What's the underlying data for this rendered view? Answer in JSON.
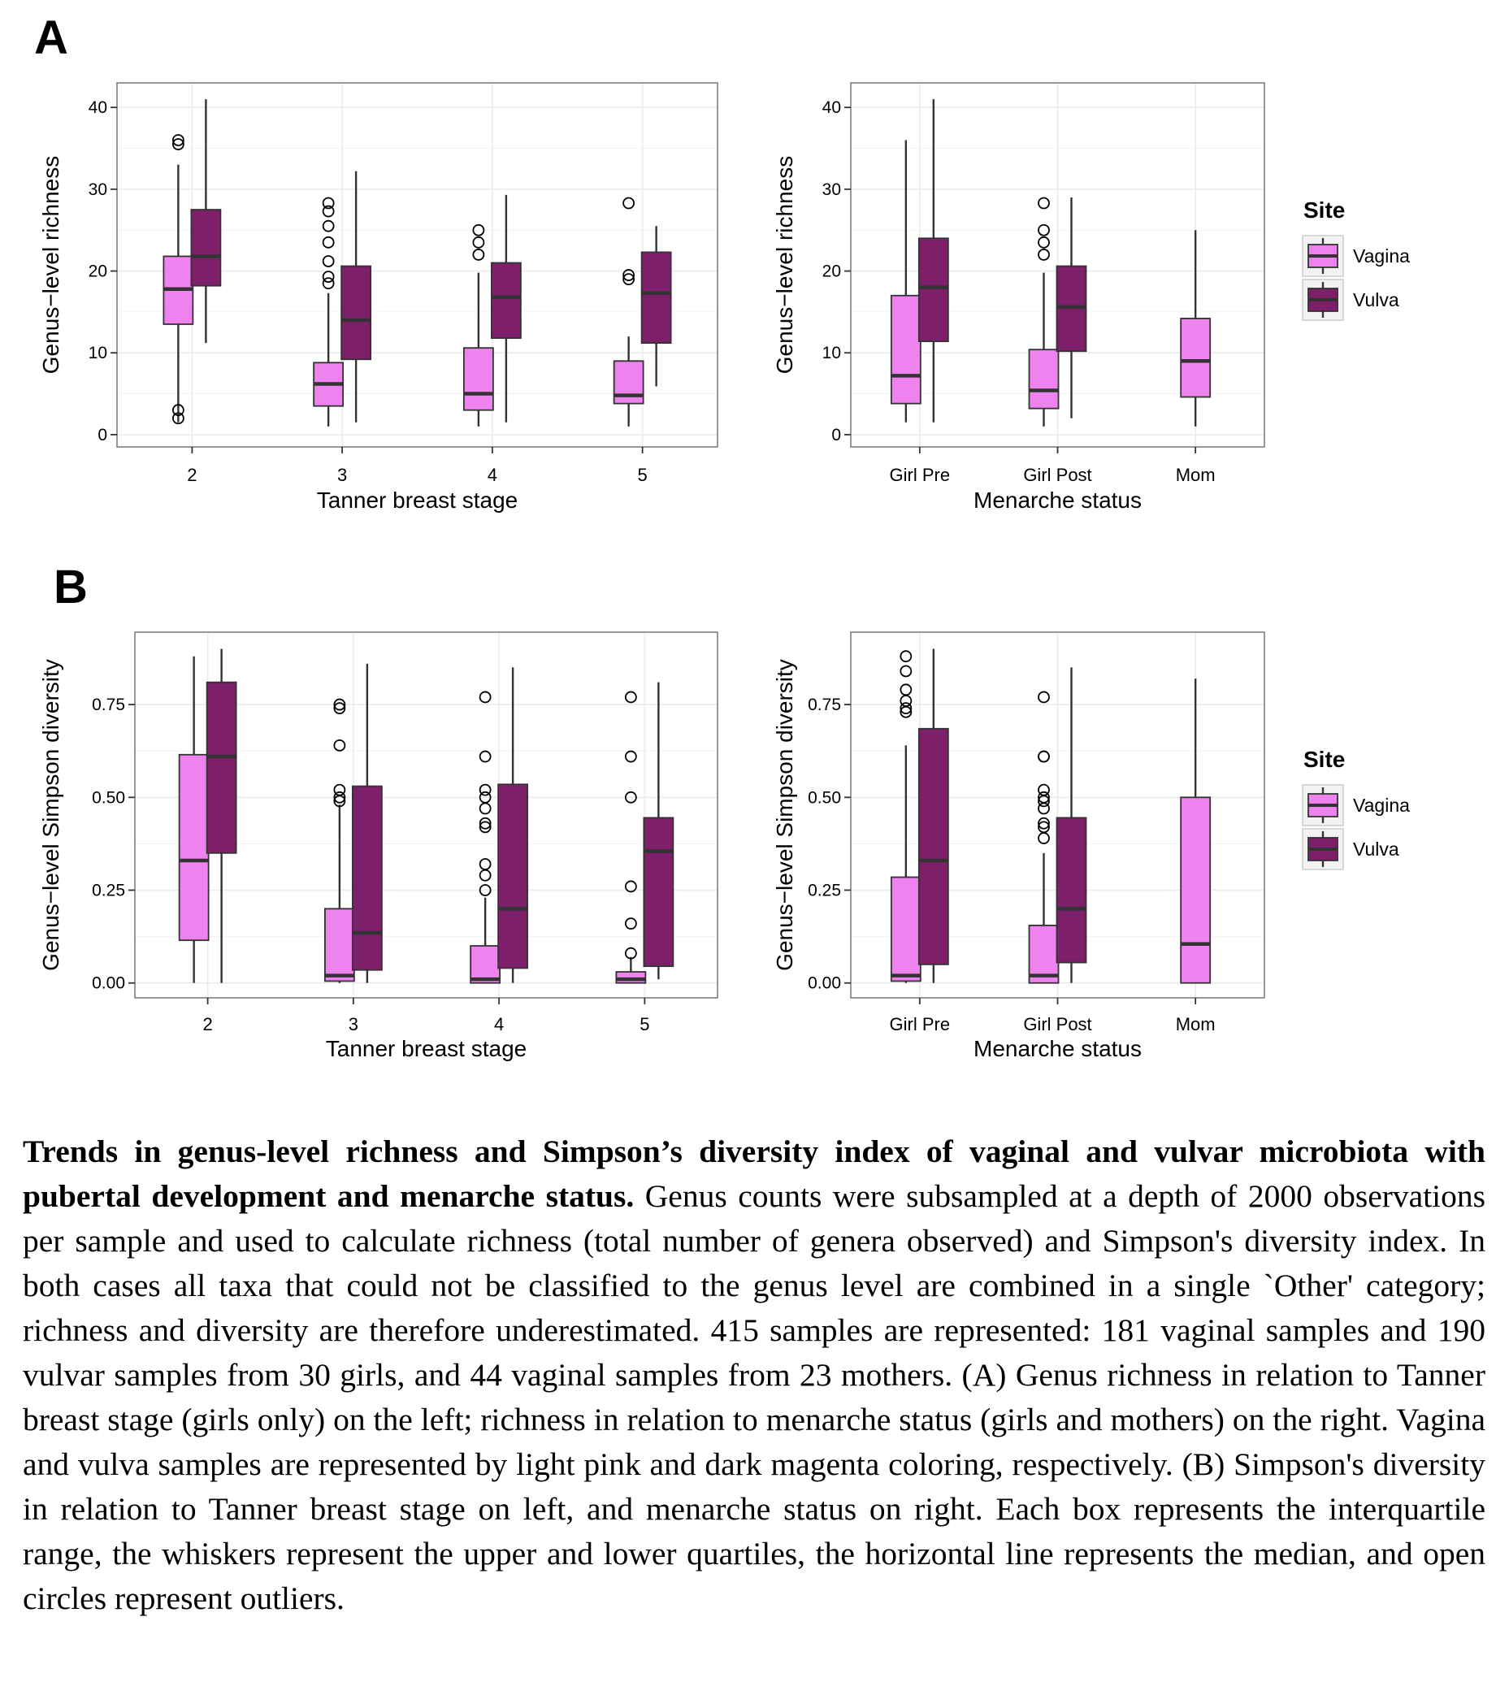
{
  "panel_labels": [
    "A",
    "B"
  ],
  "legend": {
    "title": "Site",
    "entries": [
      {
        "label": "Vagina",
        "color": "#ee82ee"
      },
      {
        "label": "Vulva",
        "color": "#7e1f6c"
      }
    ]
  },
  "colors": {
    "vagina": "#ee82ee",
    "vulva": "#7e1f6c",
    "panel_border": "#7f7f7f",
    "grid": "#ebebeb"
  },
  "chart_data": [
    {
      "type": "box",
      "panel": "A",
      "xlabel": "Tanner breast stage",
      "ylabel": "Genus−level richness",
      "categories": [
        "2",
        "3",
        "4",
        "5"
      ],
      "ylim": [
        -1.5,
        43
      ],
      "yticks": [
        0,
        10,
        20,
        30,
        40
      ],
      "ytick_labels": [
        "0",
        "10",
        "20",
        "30",
        "40"
      ],
      "grid": true,
      "series": [
        {
          "name": "Vagina",
          "boxes": [
            {
              "whislo": 1.5,
              "q1": 13.5,
              "med": 17.8,
              "q3": 21.8,
              "whishi": 33,
              "fliers": [
                35.5,
                36,
                3,
                2
              ]
            },
            {
              "whislo": 1,
              "q1": 3.5,
              "med": 6.2,
              "q3": 8.8,
              "whishi": 17.3,
              "fliers": [
                18.5,
                19.3,
                21.2,
                23.5,
                25.5,
                27.3,
                28.3
              ]
            },
            {
              "whislo": 1,
              "q1": 3,
              "med": 5,
              "q3": 10.6,
              "whishi": 19.8,
              "fliers": [
                22,
                23.5,
                25
              ]
            },
            {
              "whislo": 1,
              "q1": 3.8,
              "med": 4.8,
              "q3": 9,
              "whishi": 12,
              "fliers": [
                19,
                19.5,
                28.3
              ]
            }
          ]
        },
        {
          "name": "Vulva",
          "boxes": [
            {
              "whislo": 11.2,
              "q1": 18.2,
              "med": 21.8,
              "q3": 27.5,
              "whishi": 41,
              "fliers": []
            },
            {
              "whislo": 1.5,
              "q1": 9.2,
              "med": 14,
              "q3": 20.6,
              "whishi": 32.2,
              "fliers": []
            },
            {
              "whislo": 1.5,
              "q1": 11.8,
              "med": 16.8,
              "q3": 21,
              "whishi": 29.3,
              "fliers": []
            },
            {
              "whislo": 5.9,
              "q1": 11.2,
              "med": 17.3,
              "q3": 22.3,
              "whishi": 25.5,
              "fliers": []
            }
          ]
        }
      ]
    },
    {
      "type": "box",
      "panel": "A",
      "xlabel": "Menarche status",
      "ylabel": "Genus−level richness",
      "categories": [
        "Girl Pre",
        "Girl Post",
        "Mom"
      ],
      "ylim": [
        -1.5,
        43
      ],
      "yticks": [
        0,
        10,
        20,
        30,
        40
      ],
      "ytick_labels": [
        "0",
        "10",
        "20",
        "30",
        "40"
      ],
      "grid": true,
      "series": [
        {
          "name": "Vagina",
          "boxes": [
            {
              "whislo": 1.5,
              "q1": 3.8,
              "med": 7.2,
              "q3": 17,
              "whishi": 36,
              "fliers": []
            },
            {
              "whislo": 1,
              "q1": 3.2,
              "med": 5.4,
              "q3": 10.4,
              "whishi": 19.8,
              "fliers": [
                22,
                23.5,
                25,
                28.3
              ]
            },
            {
              "whislo": 1,
              "q1": 4.6,
              "med": 9,
              "q3": 14.2,
              "whishi": 25,
              "fliers": []
            }
          ]
        },
        {
          "name": "Vulva",
          "boxes": [
            {
              "whislo": 1.5,
              "q1": 11.4,
              "med": 18,
              "q3": 24,
              "whishi": 41,
              "fliers": []
            },
            {
              "whislo": 2,
              "q1": 10.2,
              "med": 15.6,
              "q3": 20.6,
              "whishi": 29,
              "fliers": []
            },
            null
          ]
        }
      ]
    },
    {
      "type": "box",
      "panel": "B",
      "xlabel": "Tanner breast stage",
      "ylabel": "Genus−level Simpson diversity",
      "categories": [
        "2",
        "3",
        "4",
        "5"
      ],
      "ylim": [
        -0.04,
        0.945
      ],
      "yticks": [
        0,
        0.25,
        0.5,
        0.75
      ],
      "ytick_labels": [
        "0.00",
        "0.25",
        "0.50",
        "0.75"
      ],
      "grid": true,
      "series": [
        {
          "name": "Vagina",
          "boxes": [
            {
              "whislo": 0,
              "q1": 0.115,
              "med": 0.33,
              "q3": 0.615,
              "whishi": 0.88,
              "fliers": []
            },
            {
              "whislo": 0,
              "q1": 0.005,
              "med": 0.02,
              "q3": 0.2,
              "whishi": 0.48,
              "fliers": [
                0.49,
                0.5,
                0.52,
                0.64,
                0.74,
                0.75
              ]
            },
            {
              "whislo": 0,
              "q1": 0,
              "med": 0.01,
              "q3": 0.1,
              "whishi": 0.23,
              "fliers": [
                0.25,
                0.29,
                0.32,
                0.42,
                0.43,
                0.47,
                0.5,
                0.52,
                0.61,
                0.77
              ]
            },
            {
              "whislo": 0,
              "q1": 0,
              "med": 0.01,
              "q3": 0.03,
              "whishi": 0.07,
              "fliers": [
                0.08,
                0.16,
                0.26,
                0.5,
                0.61,
                0.77
              ]
            }
          ]
        },
        {
          "name": "Vulva",
          "boxes": [
            {
              "whislo": 0,
              "q1": 0.35,
              "med": 0.61,
              "q3": 0.81,
              "whishi": 0.9,
              "fliers": []
            },
            {
              "whislo": 0,
              "q1": 0.035,
              "med": 0.135,
              "q3": 0.53,
              "whishi": 0.86,
              "fliers": []
            },
            {
              "whislo": 0,
              "q1": 0.04,
              "med": 0.2,
              "q3": 0.535,
              "whishi": 0.85,
              "fliers": []
            },
            {
              "whislo": 0.01,
              "q1": 0.045,
              "med": 0.355,
              "q3": 0.445,
              "whishi": 0.81,
              "fliers": []
            }
          ]
        }
      ]
    },
    {
      "type": "box",
      "panel": "B",
      "xlabel": "Menarche status",
      "ylabel": "Genus−level Simpson diversity",
      "categories": [
        "Girl Pre",
        "Girl Post",
        "Mom"
      ],
      "ylim": [
        -0.04,
        0.945
      ],
      "yticks": [
        0,
        0.25,
        0.5,
        0.75
      ],
      "ytick_labels": [
        "0.00",
        "0.25",
        "0.50",
        "0.75"
      ],
      "grid": true,
      "series": [
        {
          "name": "Vagina",
          "boxes": [
            {
              "whislo": 0,
              "q1": 0.005,
              "med": 0.02,
              "q3": 0.285,
              "whishi": 0.64,
              "fliers": [
                0.73,
                0.74,
                0.76,
                0.79,
                0.84,
                0.88
              ]
            },
            {
              "whislo": 0,
              "q1": 0,
              "med": 0.02,
              "q3": 0.155,
              "whishi": 0.35,
              "fliers": [
                0.39,
                0.42,
                0.43,
                0.47,
                0.49,
                0.5,
                0.52,
                0.61,
                0.61,
                0.77
              ]
            },
            {
              "whislo": 0,
              "q1": 0,
              "med": 0.105,
              "q3": 0.5,
              "whishi": 0.82,
              "fliers": []
            }
          ]
        },
        {
          "name": "Vulva",
          "boxes": [
            {
              "whislo": 0,
              "q1": 0.05,
              "med": 0.33,
              "q3": 0.685,
              "whishi": 0.9,
              "fliers": []
            },
            {
              "whislo": 0,
              "q1": 0.055,
              "med": 0.2,
              "q3": 0.445,
              "whishi": 0.85,
              "fliers": []
            },
            null
          ]
        }
      ]
    }
  ],
  "caption": {
    "title": "Trends in genus-level richness and Simpson’s diversity index of vaginal and vulvar microbiota with pubertal development and menarche status.",
    "body": " Genus counts were subsampled at a depth of 2000 observations per sample and used to calculate richness (total number of genera observed) and Simpson's diversity index. In both cases all taxa that could not be classified to the genus level are combined in a single `Other' category; richness and diversity are therefore underestimated. 415 samples are represented: 181 vaginal samples and 190 vulvar samples from 30 girls, and 44 vaginal samples from 23 mothers. (A) Genus richness in relation to Tanner breast stage (girls only) on the left; richness in relation to menarche status (girls and mothers) on the right. Vagina and vulva samples are represented by light pink and dark magenta coloring, respectively. (B) Simpson's diversity in relation to Tanner breast stage on left, and menarche status on right. Each box represents the interquartile range, the whiskers represent the upper and lower quartiles, the horizontal line represents the median, and open circles represent outliers."
  }
}
